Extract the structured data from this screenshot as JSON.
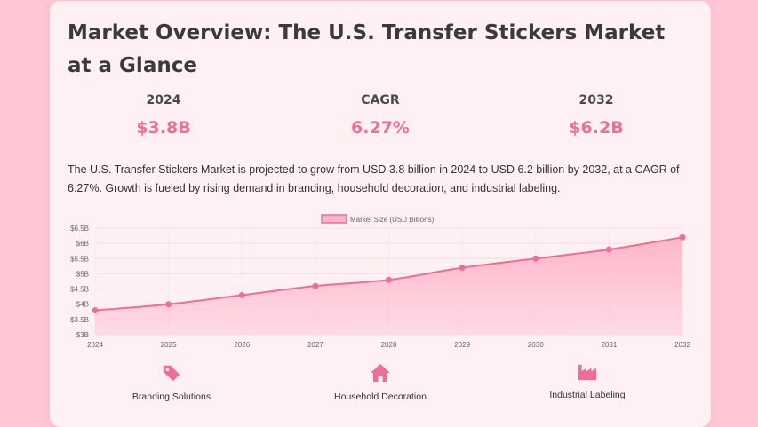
{
  "title": "Market Overview: The U.S. Transfer Stickers Market at a Glance",
  "stats": [
    {
      "label": "2024",
      "value": "$3.8B"
    },
    {
      "label": "CAGR",
      "value": "6.27%"
    },
    {
      "label": "2032",
      "value": "$6.2B"
    }
  ],
  "description": "The U.S. Transfer Stickers Market is projected to grow from USD 3.8 billion in 2024 to USD 6.2 billion by 2032, at a CAGR of 6.27%. Growth is fueled by rising demand in branding, household decoration, and industrial labeling.",
  "chart_data": {
    "type": "area",
    "x": [
      "2024",
      "2025",
      "2026",
      "2027",
      "2028",
      "2029",
      "2030",
      "2031",
      "2032"
    ],
    "series": [
      {
        "name": "Market Size (USD Billions)",
        "values": [
          3.8,
          4.0,
          4.3,
          4.6,
          4.8,
          5.2,
          5.5,
          5.8,
          6.2
        ]
      }
    ],
    "ylim": [
      3,
      6.5
    ],
    "yticks": [
      3,
      3.5,
      4,
      4.5,
      5,
      5.5,
      6,
      6.5
    ],
    "ytick_labels": [
      "$3B",
      "$3.5B",
      "$4B",
      "$4.5B",
      "$5B",
      "$5.5B",
      "$6B",
      "$6.5B"
    ],
    "legend_position": "top-center",
    "grid": true,
    "colors": {
      "line": "#ee6f95",
      "fill": "#ffb3c8"
    }
  },
  "features": [
    {
      "icon": "tag-icon",
      "label": "Branding Solutions"
    },
    {
      "icon": "home-icon",
      "label": "Household Decoration"
    },
    {
      "icon": "industry-icon",
      "label": "Industrial Labeling"
    }
  ]
}
